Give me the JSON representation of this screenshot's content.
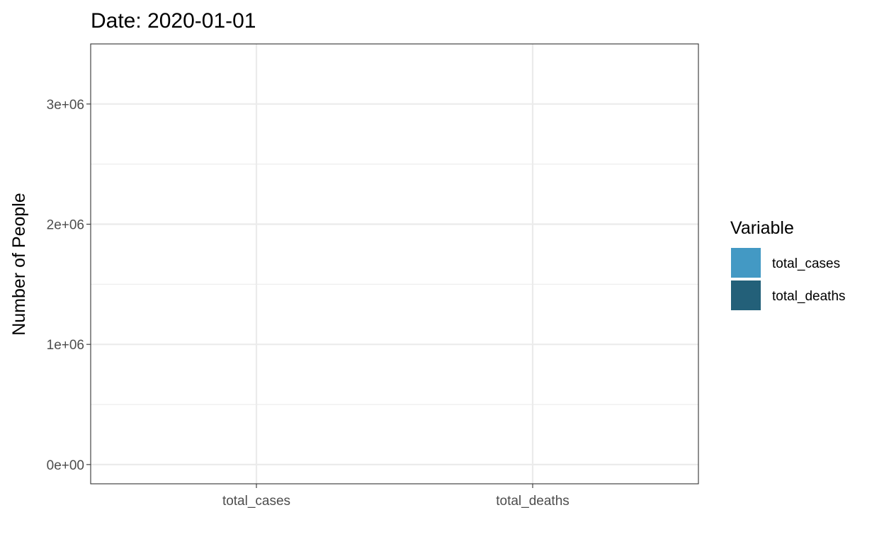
{
  "chart_data": {
    "type": "bar",
    "title": "Date: 2020-01-01",
    "xlabel": "",
    "ylabel": "Number of People",
    "categories": [
      "total_cases",
      "total_deaths"
    ],
    "values": [
      0,
      0
    ],
    "ylim": [
      -160000,
      3500000
    ],
    "y_ticks": [
      0,
      1000000,
      2000000,
      3000000
    ],
    "y_tick_labels": [
      "0e+00",
      "1e+06",
      "2e+06",
      "3e+06"
    ],
    "y_minor_ticks": [
      500000,
      1500000,
      2500000
    ],
    "grid": true,
    "legend": {
      "title": "Variable",
      "position": "right",
      "entries": [
        {
          "label": "total_cases",
          "color": "#4399c4"
        },
        {
          "label": "total_deaths",
          "color": "#236079"
        }
      ]
    }
  }
}
